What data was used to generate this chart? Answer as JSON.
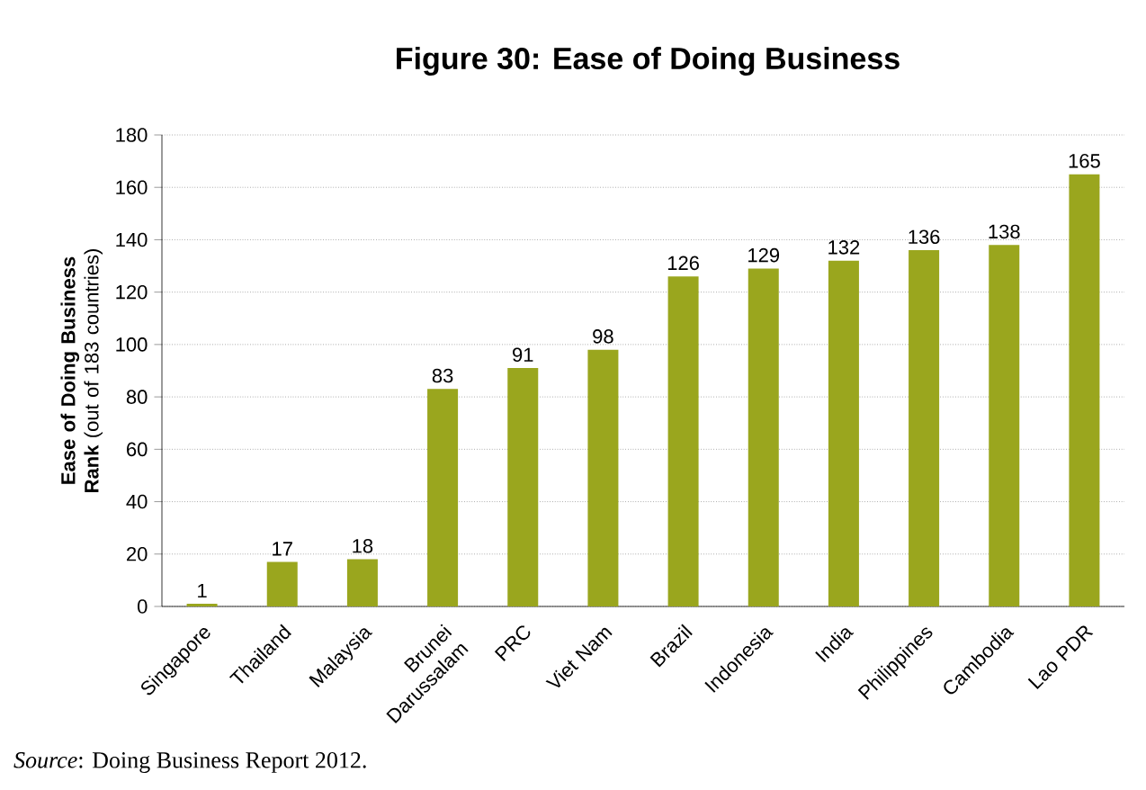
{
  "chart_data": {
    "type": "bar",
    "title": "Figure 30: Ease of Doing Business",
    "ylabel": "**Ease of Doing Business Rank** (out of 183 countries)",
    "categories": [
      "Singapore",
      "Thailand",
      "Malaysia",
      "Brunei Darussalam",
      "PRC",
      "Viet Nam",
      "Brazil",
      "Indonesia",
      "India",
      "Philippines",
      "Cambodia",
      "Lao PDR"
    ],
    "values": [
      1,
      17,
      18,
      83,
      91,
      98,
      126,
      129,
      132,
      136,
      138,
      165
    ],
    "color": "#9aa61e",
    "ylim": [
      0,
      180
    ],
    "yticks": [
      0,
      20,
      40,
      60,
      80,
      100,
      120,
      140,
      160,
      180
    ],
    "grid": "y",
    "data_labels": true,
    "annotations": [
      "*Source*: Doing Business Report 2012."
    ]
  }
}
